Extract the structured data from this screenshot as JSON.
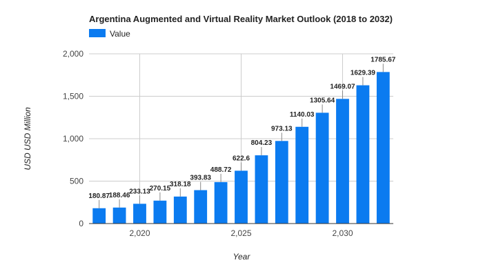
{
  "chart_data": {
    "type": "bar",
    "title": "Argentina Augmented and Virtual Reality Market Outlook (2018 to 2032)",
    "legend": {
      "label": "Value",
      "placement": "top-left"
    },
    "xlabel": "Year",
    "ylabel": "USD USD Million",
    "x": [
      2018,
      2019,
      2020,
      2021,
      2022,
      2023,
      2024,
      2025,
      2026,
      2027,
      2028,
      2029,
      2030,
      2031,
      2032
    ],
    "values": [
      180.87,
      188.46,
      233.13,
      270.15,
      318.18,
      393.83,
      488.72,
      622.6,
      804.23,
      973.13,
      1140.03,
      1305.64,
      1469.07,
      1629.39,
      1785.67
    ],
    "value_labels": [
      "180.87",
      "188.46",
      "233.13",
      "270.15",
      "318.18",
      "393.83",
      "488.72",
      "622.6",
      "804.23",
      "973.13",
      "1140.03",
      "1305.64",
      "1469.07",
      "1629.39",
      "1785.67"
    ],
    "ylim": [
      0,
      2000
    ],
    "y_ticks": [
      0,
      500,
      1000,
      1500,
      2000
    ],
    "y_tick_labels": [
      "0",
      "500",
      "1,000",
      "1,500",
      "2,000"
    ],
    "x_ticks": [
      2020,
      2025,
      2030
    ],
    "x_tick_labels": [
      "2,020",
      "2,025",
      "2,030"
    ],
    "grid": true,
    "bar_color": "#0b7bf0"
  }
}
